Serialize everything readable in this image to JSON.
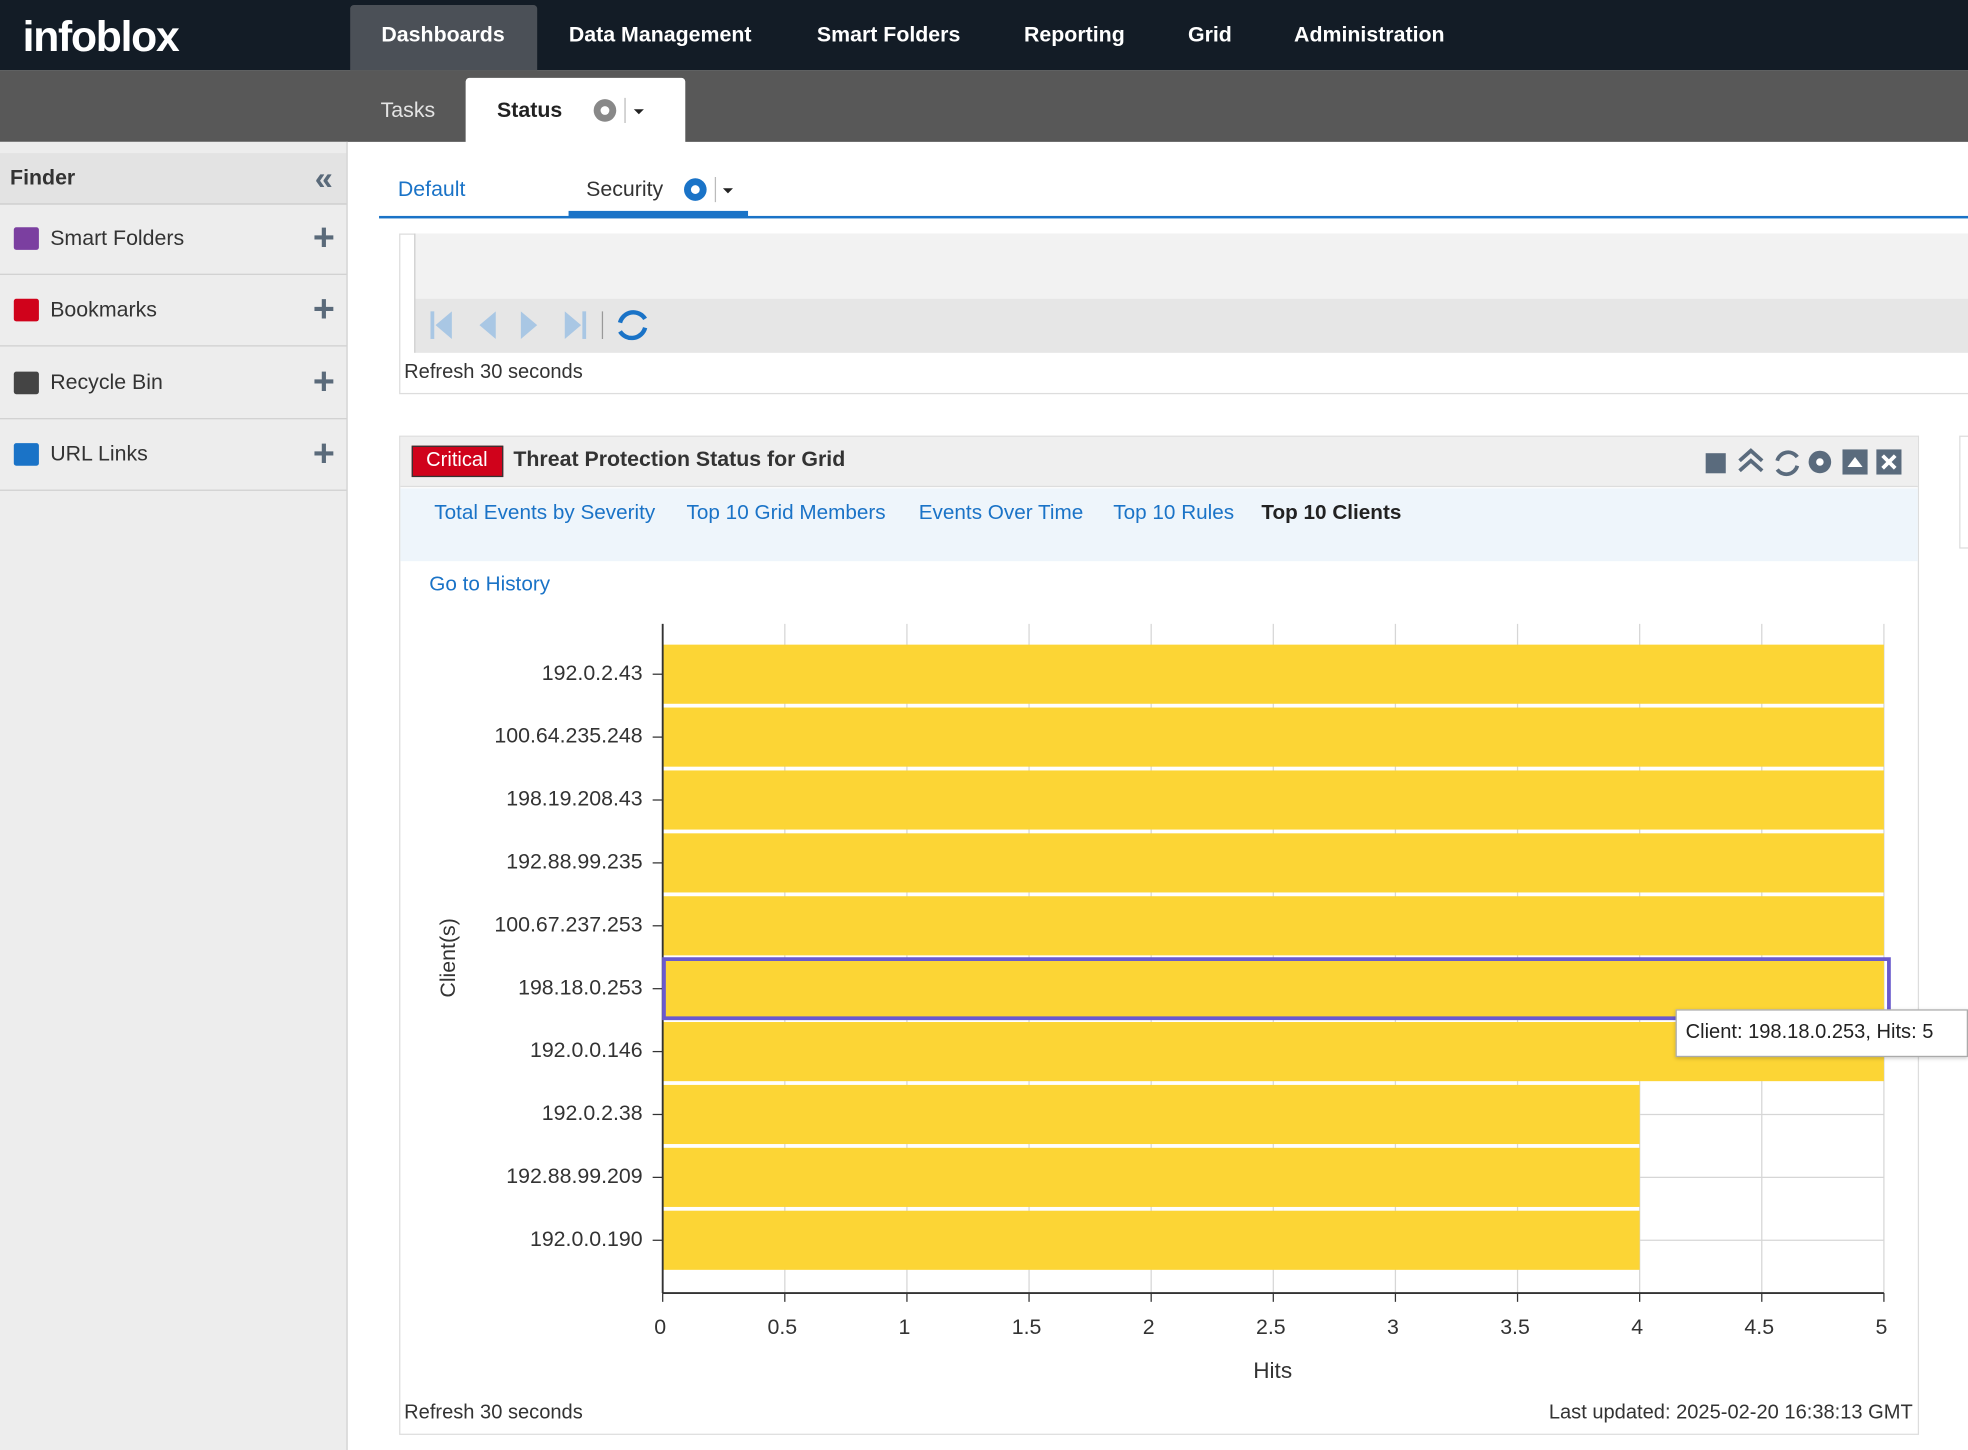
{
  "brand": "infoblox",
  "nav": [
    "Dashboards",
    "Data Management",
    "Smart Folders",
    "Reporting",
    "Grid",
    "Administration"
  ],
  "subnav": [
    "Tasks",
    "Status"
  ],
  "finder": {
    "title": "Finder",
    "items": [
      "Smart Folders",
      "Bookmarks",
      "Recycle Bin",
      "URL Links"
    ]
  },
  "dashboard_tabs": [
    "Default",
    "Security"
  ],
  "upper_widget": {
    "refresh": "Refresh 30 seconds"
  },
  "widget": {
    "badge": "Critical",
    "title": "Threat Protection Status for Grid",
    "tabs": [
      "Total Events by Severity",
      "Top 10 Grid Members",
      "Events Over Time",
      "Top 10 Rules",
      "Top 10 Clients"
    ],
    "link": "Go to History",
    "tooltip": "Client: 198.18.0.253, Hits: 5",
    "refresh": "Refresh 30 seconds",
    "last_updated": "Last updated: 2025-02-20 16:38:13 GMT"
  },
  "chart_data": {
    "type": "bar",
    "orientation": "horizontal",
    "categories": [
      "192.0.2.43",
      "100.64.235.248",
      "198.19.208.43",
      "192.88.99.235",
      "100.67.237.253",
      "198.18.0.253",
      "192.0.0.146",
      "192.0.2.38",
      "192.88.99.209",
      "192.0.0.190"
    ],
    "values": [
      5,
      5,
      5,
      5,
      5,
      5,
      5,
      4,
      4,
      4
    ],
    "color": "#fcd535",
    "xlabel": "Hits",
    "ylabel": "Client(s)",
    "xlim": [
      0,
      5
    ],
    "xticks": [
      0,
      0.5,
      1,
      1.5,
      2,
      2.5,
      3,
      3.5,
      4,
      4.5,
      5
    ],
    "grid": true
  }
}
